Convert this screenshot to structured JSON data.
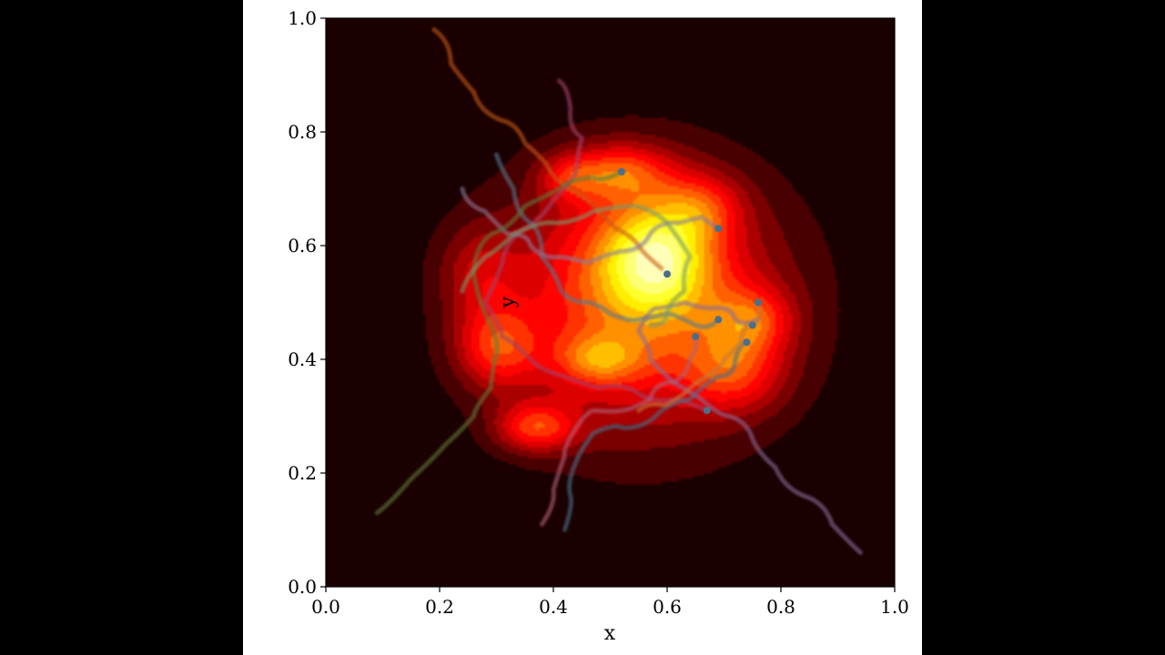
{
  "chart_data": {
    "type": "heatmap",
    "title": "",
    "xlabel": "x",
    "ylabel": "y",
    "xlim": [
      0.0,
      1.0
    ],
    "ylim": [
      0.0,
      1.0
    ],
    "x_ticks": [
      "0.0",
      "0.2",
      "0.4",
      "0.6",
      "0.8",
      "1.0"
    ],
    "y_ticks": [
      "0.0",
      "0.2",
      "0.4",
      "0.6",
      "0.8",
      "1.0"
    ],
    "grid": false,
    "colormap": "hot",
    "colors": {
      "background": "#1a0000",
      "frame": "#000000",
      "marker": "#4a6f8a"
    },
    "density_blobs": [
      {
        "x": 0.55,
        "y": 0.5,
        "sx": 0.175,
        "sy": 0.16,
        "w": 0.55
      },
      {
        "x": 0.58,
        "y": 0.58,
        "sx": 0.07,
        "sy": 0.07,
        "w": 0.55
      },
      {
        "x": 0.52,
        "y": 0.73,
        "sx": 0.06,
        "sy": 0.035,
        "w": 0.35
      },
      {
        "x": 0.43,
        "y": 0.72,
        "sx": 0.04,
        "sy": 0.03,
        "w": 0.25
      },
      {
        "x": 0.3,
        "y": 0.42,
        "sx": 0.05,
        "sy": 0.05,
        "w": 0.35
      },
      {
        "x": 0.37,
        "y": 0.28,
        "sx": 0.05,
        "sy": 0.03,
        "w": 0.4
      },
      {
        "x": 0.48,
        "y": 0.4,
        "sx": 0.05,
        "sy": 0.03,
        "w": 0.3
      },
      {
        "x": 0.72,
        "y": 0.38,
        "sx": 0.06,
        "sy": 0.05,
        "w": 0.3
      },
      {
        "x": 0.75,
        "y": 0.47,
        "sx": 0.05,
        "sy": 0.04,
        "w": 0.3
      },
      {
        "x": 0.66,
        "y": 0.67,
        "sx": 0.05,
        "sy": 0.04,
        "w": 0.25
      },
      {
        "x": 0.27,
        "y": 0.55,
        "sx": 0.05,
        "sy": 0.06,
        "w": 0.2
      }
    ],
    "trajectories": [
      {
        "color": "#c85a14",
        "points": [
          [
            0.19,
            0.98
          ],
          [
            0.22,
            0.92
          ],
          [
            0.26,
            0.87
          ],
          [
            0.31,
            0.82
          ],
          [
            0.35,
            0.78
          ],
          [
            0.39,
            0.74
          ],
          [
            0.43,
            0.7
          ],
          [
            0.47,
            0.67
          ],
          [
            0.51,
            0.63
          ],
          [
            0.55,
            0.6
          ],
          [
            0.59,
            0.56
          ]
        ]
      },
      {
        "color": "#a0426a",
        "points": [
          [
            0.41,
            0.89
          ],
          [
            0.43,
            0.84
          ],
          [
            0.45,
            0.79
          ],
          [
            0.44,
            0.73
          ],
          [
            0.4,
            0.68
          ],
          [
            0.35,
            0.63
          ],
          [
            0.31,
            0.57
          ],
          [
            0.28,
            0.5
          ],
          [
            0.31,
            0.44
          ],
          [
            0.36,
            0.4
          ],
          [
            0.42,
            0.37
          ],
          [
            0.48,
            0.35
          ],
          [
            0.55,
            0.34
          ],
          [
            0.62,
            0.33
          ],
          [
            0.67,
            0.31
          ]
        ]
      },
      {
        "color": "#557890",
        "points": [
          [
            0.3,
            0.76
          ],
          [
            0.33,
            0.7
          ],
          [
            0.36,
            0.64
          ],
          [
            0.38,
            0.58
          ],
          [
            0.41,
            0.53
          ],
          [
            0.45,
            0.5
          ],
          [
            0.5,
            0.48
          ],
          [
            0.55,
            0.47
          ],
          [
            0.6,
            0.48
          ],
          [
            0.65,
            0.46
          ],
          [
            0.69,
            0.47
          ]
        ]
      },
      {
        "color": "#8a7a9a",
        "points": [
          [
            0.24,
            0.7
          ],
          [
            0.28,
            0.66
          ],
          [
            0.32,
            0.62
          ],
          [
            0.36,
            0.6
          ],
          [
            0.41,
            0.58
          ],
          [
            0.46,
            0.57
          ],
          [
            0.52,
            0.59
          ],
          [
            0.57,
            0.62
          ],
          [
            0.62,
            0.64
          ],
          [
            0.66,
            0.65
          ],
          [
            0.69,
            0.63
          ]
        ]
      },
      {
        "color": "#5f7a3a",
        "points": [
          [
            0.09,
            0.13
          ],
          [
            0.15,
            0.19
          ],
          [
            0.21,
            0.25
          ],
          [
            0.26,
            0.3
          ],
          [
            0.29,
            0.35
          ],
          [
            0.3,
            0.41
          ],
          [
            0.28,
            0.48
          ],
          [
            0.26,
            0.55
          ],
          [
            0.29,
            0.62
          ],
          [
            0.35,
            0.67
          ],
          [
            0.41,
            0.7
          ],
          [
            0.47,
            0.72
          ],
          [
            0.52,
            0.73
          ]
        ]
      },
      {
        "color": "#8a6a9a",
        "points": [
          [
            0.94,
            0.06
          ],
          [
            0.89,
            0.11
          ],
          [
            0.84,
            0.16
          ],
          [
            0.79,
            0.21
          ],
          [
            0.75,
            0.26
          ],
          [
            0.71,
            0.3
          ],
          [
            0.66,
            0.33
          ],
          [
            0.61,
            0.36
          ],
          [
            0.57,
            0.4
          ],
          [
            0.55,
            0.45
          ],
          [
            0.58,
            0.49
          ],
          [
            0.63,
            0.5
          ],
          [
            0.68,
            0.49
          ],
          [
            0.72,
            0.47
          ],
          [
            0.76,
            0.47
          ]
        ]
      },
      {
        "color": "#b0607a",
        "points": [
          [
            0.38,
            0.11
          ],
          [
            0.4,
            0.17
          ],
          [
            0.42,
            0.23
          ],
          [
            0.44,
            0.28
          ],
          [
            0.47,
            0.31
          ],
          [
            0.52,
            0.31
          ],
          [
            0.57,
            0.33
          ],
          [
            0.61,
            0.36
          ],
          [
            0.64,
            0.4
          ],
          [
            0.65,
            0.44
          ]
        ]
      },
      {
        "color": "#4a6f8a",
        "points": [
          [
            0.42,
            0.1
          ],
          [
            0.43,
            0.16
          ],
          [
            0.44,
            0.22
          ],
          [
            0.47,
            0.27
          ],
          [
            0.52,
            0.28
          ],
          [
            0.58,
            0.3
          ],
          [
            0.64,
            0.33
          ],
          [
            0.69,
            0.37
          ],
          [
            0.72,
            0.4
          ],
          [
            0.74,
            0.43
          ]
        ]
      },
      {
        "color": "#c27a3a",
        "points": [
          [
            0.55,
            0.31
          ],
          [
            0.59,
            0.32
          ],
          [
            0.63,
            0.34
          ],
          [
            0.67,
            0.37
          ],
          [
            0.7,
            0.4
          ],
          [
            0.73,
            0.43
          ],
          [
            0.75,
            0.46
          ],
          [
            0.76,
            0.5
          ]
        ]
      },
      {
        "color": "#7a9a6a",
        "points": [
          [
            0.24,
            0.52
          ],
          [
            0.28,
            0.58
          ],
          [
            0.33,
            0.62
          ],
          [
            0.4,
            0.64
          ],
          [
            0.47,
            0.66
          ],
          [
            0.54,
            0.67
          ],
          [
            0.6,
            0.64
          ],
          [
            0.64,
            0.58
          ],
          [
            0.63,
            0.52
          ],
          [
            0.6,
            0.48
          ],
          [
            0.57,
            0.46
          ]
        ]
      }
    ],
    "end_markers": [
      {
        "x": 0.52,
        "y": 0.73
      },
      {
        "x": 0.69,
        "y": 0.63
      },
      {
        "x": 0.6,
        "y": 0.55
      },
      {
        "x": 0.76,
        "y": 0.5
      },
      {
        "x": 0.69,
        "y": 0.47
      },
      {
        "x": 0.75,
        "y": 0.46
      },
      {
        "x": 0.65,
        "y": 0.44
      },
      {
        "x": 0.74,
        "y": 0.43
      },
      {
        "x": 0.67,
        "y": 0.31
      }
    ]
  }
}
